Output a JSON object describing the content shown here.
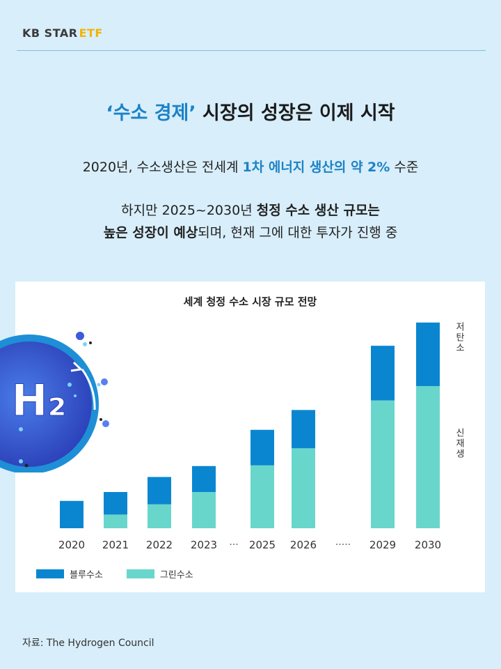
{
  "brand": {
    "kb_star": "KB STAR",
    "etf": "ETF"
  },
  "headline": {
    "highlight": "‘수소 경제’",
    "rest": " 시장의 성장은 이제 시작"
  },
  "sub1": {
    "a": "2020년, 수소생산은 전세계 ",
    "highlight": "1차 에너지 생산의 약 2%",
    "b": " 수준"
  },
  "sub2": {
    "line1_a": "하지만 2025~2030년 ",
    "line1_bold": "청정 수소 생산 규모는",
    "line2_bold": "높은 성장이 예상",
    "line2_b": "되며, 현재 그에 대한 투자가 진행 중"
  },
  "icon_text": "H₂",
  "source": "자료: The Hydrogen Council",
  "colors": {
    "blue": "#0a86d1",
    "green": "#69d6cc",
    "accent": "#1c82c6"
  },
  "chart_data": {
    "type": "bar",
    "stacked": true,
    "title": "세계 청정 수소 시장 규모 전망",
    "categories": [
      "2020",
      "2021",
      "2022",
      "2023",
      "2025",
      "2026",
      "2029",
      "2030"
    ],
    "gap_markers": [
      "···",
      "·····"
    ],
    "series": [
      {
        "name": "그린수소",
        "color": "#69d6cc",
        "values": [
          0,
          20,
          35,
          53,
          92,
          117,
          187,
          208
        ]
      },
      {
        "name": "블루수소",
        "color": "#0a86d1",
        "values": [
          40,
          33,
          40,
          38,
          52,
          56,
          80,
          93
        ]
      }
    ],
    "side_labels": {
      "top": "저탄소",
      "bottom": "신재생"
    },
    "ylim": [
      0,
      310
    ],
    "xlabel": "",
    "ylabel": ""
  }
}
